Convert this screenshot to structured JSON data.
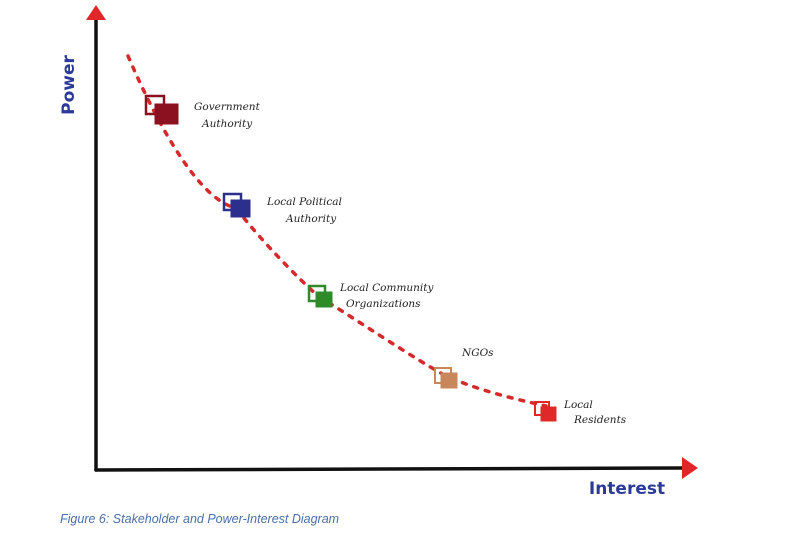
{
  "diagram": {
    "y_axis_label": "Power",
    "x_axis_label": "Interest",
    "axis_color": "#111111",
    "arrow_color": "#e0262b",
    "axis_label_color": "#2b3a9a",
    "curve_color": "#d42a2a",
    "nodes": [
      {
        "id": "government-authority",
        "lines": [
          "Government",
          "Authority"
        ],
        "color": "#8b1020"
      },
      {
        "id": "local-political-authority",
        "lines": [
          "Local Political",
          "Authority"
        ],
        "color": "#2d2f8f"
      },
      {
        "id": "local-community-organizations",
        "lines": [
          "Local Community",
          "Organizations"
        ],
        "color": "#2f8a2a"
      },
      {
        "id": "ngos",
        "lines": [
          "NGOs"
        ],
        "color": "#c8875a"
      },
      {
        "id": "local-residents",
        "lines": [
          "Local",
          "Residents"
        ],
        "color": "#e02828"
      }
    ]
  },
  "caption": "Figure 6: Stakeholder and Power-Interest Diagram"
}
